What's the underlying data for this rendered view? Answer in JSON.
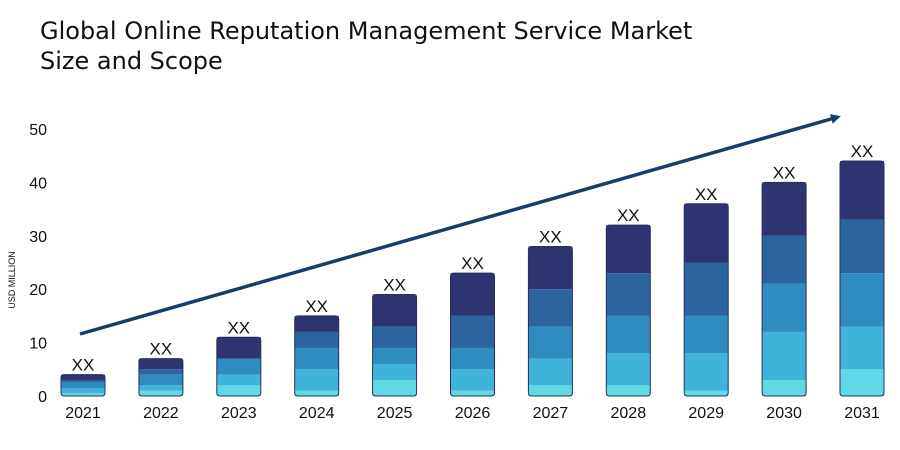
{
  "chart_data": {
    "type": "bar",
    "stacked": true,
    "title_lines": [
      "Global Online Reputation Management Service Market",
      "Size and Scope"
    ],
    "ylabel": "USD MILLION",
    "ylim": [
      0,
      50
    ],
    "yticks": [
      0,
      10,
      20,
      30,
      40,
      50
    ],
    "grid": false,
    "legend": "none",
    "trend_arrow": true,
    "categories": [
      "2021",
      "2022",
      "2023",
      "2024",
      "2025",
      "2026",
      "2027",
      "2028",
      "2029",
      "2030",
      "2031"
    ],
    "data_labels": [
      "XX",
      "XX",
      "XX",
      "XX",
      "XX",
      "XX",
      "XX",
      "XX",
      "XX",
      "XX",
      "XX"
    ],
    "series": [
      {
        "color": "#5fd9e6",
        "values": [
          0.5,
          1,
          2,
          1,
          3,
          1,
          2,
          2,
          1,
          3,
          5
        ]
      },
      {
        "color": "#3fb3d9",
        "values": [
          1,
          1,
          2,
          4,
          3,
          4,
          5,
          6,
          7,
          9,
          8
        ]
      },
      {
        "color": "#2f8cc0",
        "values": [
          1,
          2,
          3,
          4,
          3,
          4,
          6,
          7,
          7,
          9,
          10
        ]
      },
      {
        "color": "#2c64a0",
        "values": [
          0.5,
          1,
          0,
          3,
          4,
          6,
          7,
          8,
          10,
          9,
          10
        ]
      },
      {
        "color": "#2e3372",
        "values": [
          1,
          2,
          4,
          3,
          6,
          8,
          8,
          9,
          11,
          10,
          11
        ]
      }
    ]
  }
}
